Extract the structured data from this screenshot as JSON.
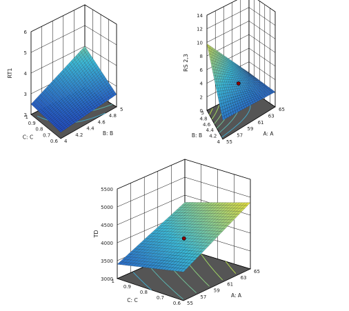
{
  "chart_data": [
    {
      "type": "surface3d",
      "zlabel": "RT1",
      "xlabel": "B: B",
      "ylabel": "C: C",
      "x_range": [
        4,
        5
      ],
      "y_range": [
        0.6,
        1
      ],
      "z_range": [
        2,
        6
      ],
      "x_ticks": [
        "4",
        "4.2",
        "4.4",
        "4.6",
        "4.8",
        "5"
      ],
      "y_ticks": [
        "0.6",
        "0.7",
        "0.8",
        "0.9",
        "1"
      ],
      "z_ticks": [
        "2",
        "3",
        "4",
        "5",
        "6"
      ],
      "corner_values": {
        "x_min_y_min": 2.3,
        "x_max_y_min": 2.6,
        "x_min_y_max": 2.5,
        "x_max_y_max": 4.0
      }
    },
    {
      "type": "surface3d",
      "zlabel": "RS 2,3",
      "xlabel": "A: A",
      "ylabel": "B: B",
      "x_range": [
        55,
        65
      ],
      "y_range": [
        4,
        5
      ],
      "z_range": [
        0,
        14
      ],
      "x_ticks": [
        "55",
        "57",
        "59",
        "61",
        "63",
        "65"
      ],
      "y_ticks": [
        "4",
        "4.2",
        "4.4",
        "4.6",
        "4.8",
        "5"
      ],
      "z_ticks": [
        "0",
        "2",
        "4",
        "6",
        "8",
        "10",
        "12",
        "14"
      ],
      "corner_values": {
        "x_min_y_min": 2.8,
        "x_max_y_min": 2.2,
        "x_min_y_max": 9.8,
        "x_max_y_max": 2.4
      },
      "design_point": {
        "x": 60,
        "y": 4.5,
        "z": 4.1
      }
    },
    {
      "type": "surface3d",
      "zlabel": "TD",
      "xlabel": "A: A",
      "ylabel": "C: C",
      "x_range": [
        55,
        65
      ],
      "y_range": [
        0.6,
        1
      ],
      "z_range": [
        3000,
        5500
      ],
      "x_ticks": [
        "55",
        "57",
        "59",
        "61",
        "63",
        "65"
      ],
      "y_ticks": [
        "0.6",
        "0.7",
        "0.8",
        "0.9",
        "1"
      ],
      "z_ticks": [
        "3000",
        "3500",
        "4000",
        "4500",
        "5000",
        "5500"
      ],
      "corner_values": {
        "x_min_y_min": 3800,
        "x_max_y_min": 4850,
        "x_min_y_max": 3400,
        "x_max_y_max": 4300
      },
      "design_point": {
        "x": 60,
        "y": 0.8,
        "z": 4000
      }
    }
  ],
  "colors": {
    "floor": "#555555",
    "wall_grid": "#000000",
    "surface_low": "#1f3fbf",
    "surface_mid": "#3ab8d6",
    "surface_high": "#e8df3a",
    "mesh": "#1a1a1a",
    "contour_low": "#2d9ce0",
    "contour_high": "#b7e04a"
  }
}
